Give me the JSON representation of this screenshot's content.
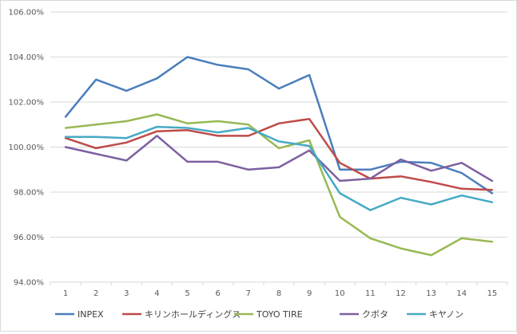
{
  "chart_data": {
    "type": "line",
    "title": "",
    "xlabel": "",
    "ylabel": "",
    "x": [
      1,
      2,
      3,
      4,
      5,
      6,
      7,
      8,
      9,
      10,
      11,
      12,
      13,
      14,
      15
    ],
    "x_tick_labels": [
      "1",
      "2",
      "3",
      "4",
      "5",
      "6",
      "7",
      "8",
      "9",
      "10",
      "11",
      "12",
      "13",
      "14",
      "15"
    ],
    "ylim": [
      94,
      106
    ],
    "y_ticks": [
      94,
      96,
      98,
      100,
      102,
      104,
      106
    ],
    "y_tick_labels": [
      "94.00%",
      "96.00%",
      "98.00%",
      "100.00%",
      "102.00%",
      "104.00%",
      "106.00%"
    ],
    "grid": true,
    "legend_position": "bottom",
    "series": [
      {
        "name": "INPEX",
        "color": "#4a7ebb",
        "values": [
          101.35,
          103.0,
          102.5,
          103.05,
          104.0,
          103.65,
          103.45,
          102.6,
          103.2,
          99.0,
          99.0,
          99.35,
          99.3,
          98.85,
          97.95
        ]
      },
      {
        "name": "キリンホールディングス",
        "color": "#be4b48",
        "values": [
          100.4,
          99.95,
          100.2,
          100.7,
          100.75,
          100.5,
          100.5,
          101.05,
          101.25,
          99.3,
          98.6,
          98.7,
          98.45,
          98.15,
          98.1
        ]
      },
      {
        "name": "TOYO  TIRE",
        "color": "#98b954",
        "values": [
          100.85,
          101.0,
          101.15,
          101.45,
          101.05,
          101.15,
          101.0,
          99.95,
          100.3,
          96.9,
          95.95,
          95.5,
          95.2,
          95.95,
          95.8
        ]
      },
      {
        "name": "クボタ",
        "color": "#7d60a0",
        "values": [
          100.0,
          99.7,
          99.4,
          100.5,
          99.35,
          99.35,
          99.0,
          99.1,
          99.85,
          98.5,
          98.6,
          99.45,
          98.95,
          99.3,
          98.5
        ]
      },
      {
        "name": "キヤノン",
        "color": "#46aac5",
        "values": [
          100.45,
          100.45,
          100.4,
          100.9,
          100.85,
          100.65,
          100.85,
          100.25,
          100.05,
          97.95,
          97.2,
          97.75,
          97.45,
          97.85,
          97.55
        ]
      }
    ]
  }
}
